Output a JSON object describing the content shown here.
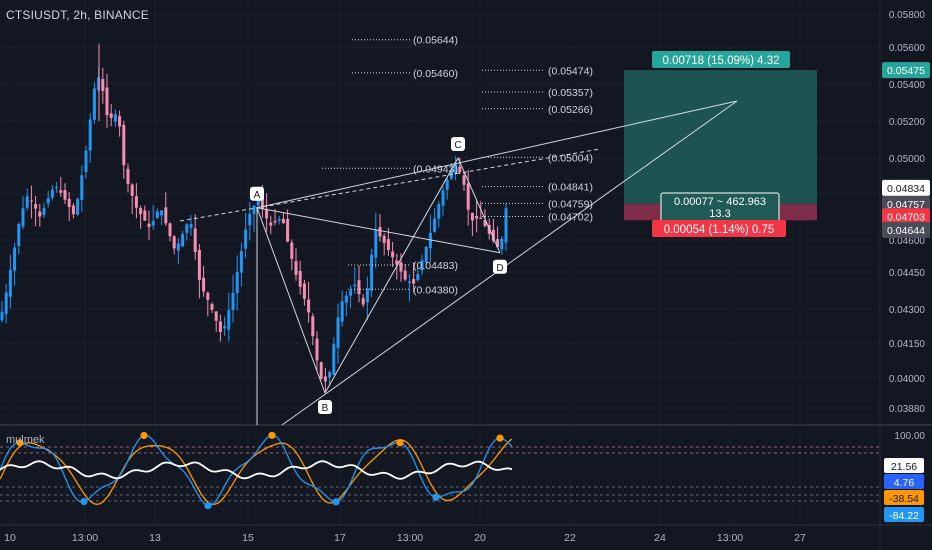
{
  "header": {
    "symbol": "CTSIUSDT, 2h, BINANCE"
  },
  "indicator": {
    "name": "mulmek"
  },
  "chart_data": {
    "type": "candlestick",
    "price_axis": {
      "ticks": [
        "0.05800",
        "0.05600",
        "0.05400",
        "0.05200",
        "0.05000",
        "0.04800",
        "0.04600",
        "0.04450",
        "0.04300",
        "0.04150",
        "0.04000",
        "0.03880"
      ],
      "range": [
        0.0378,
        0.0585
      ]
    },
    "price_labels": [
      {
        "text": "0.05475",
        "value": 0.05475,
        "color": "#26a69a"
      },
      {
        "text": "0.04834",
        "value": 0.04834,
        "color": "#ffffff",
        "fg": "#131722"
      },
      {
        "text": "0.04757",
        "value": 0.04757,
        "color": "#4a4d57"
      },
      {
        "text": "0.04703",
        "value": 0.04703,
        "color": "#f23645"
      },
      {
        "text": "0.04644",
        "value": 0.04644,
        "color": "#4a4d57"
      }
    ],
    "time_axis": [
      "10",
      "13:00",
      "13",
      "15",
      "17",
      "13:00",
      "20",
      "22",
      "24",
      "13:00",
      "27"
    ],
    "fib_levels": [
      {
        "text": "(0.05644)",
        "value": 0.05644
      },
      {
        "text": "(0.05460)",
        "value": 0.0546
      },
      {
        "text": "(0.05474)",
        "value": 0.05474
      },
      {
        "text": "(0.05357)",
        "value": 0.05357
      },
      {
        "text": "(0.05266)",
        "value": 0.05266
      },
      {
        "text": "(0.05004)",
        "value": 0.05004
      },
      {
        "text": "(0.04943)",
        "value": 0.04943
      },
      {
        "text": "(0.04841)",
        "value": 0.04841
      },
      {
        "text": "(0.04759)",
        "value": 0.04759
      },
      {
        "text": "(0.04702)",
        "value": 0.04702
      },
      {
        "text": "(0.04483)",
        "value": 0.04483
      },
      {
        "text": "(0.04380)",
        "value": 0.0438
      }
    ],
    "pattern_points": [
      {
        "label": "A",
        "value": 0.0474
      },
      {
        "label": "B",
        "value": 0.0394
      },
      {
        "label": "C",
        "value": 0.05
      },
      {
        "label": "D",
        "value": 0.0454
      }
    ],
    "position": {
      "target": "0.00718 (15.09%) 4.32",
      "entry_line1": "0.00077 ~ 462.963",
      "entry_line2": "13.3",
      "stop": "0.00054 (1.14%) 0.75",
      "target_price": 0.05475,
      "entry_price": 0.04757,
      "stop_price": 0.04703
    },
    "oscillator": {
      "ticks": [
        "100.00"
      ],
      "values": [
        {
          "text": "21.56",
          "color": "#ffffff",
          "fg": "#131722"
        },
        {
          "text": "4.76",
          "color": "#2962ff"
        },
        {
          "text": "-38.54",
          "color": "#ff9800",
          "fg": "#131722"
        },
        {
          "text": "-84.22",
          "color": "#2196f3"
        }
      ]
    },
    "colors": {
      "up": "#2196f3",
      "down": "#f48fb1",
      "bg": "#131722",
      "grid": "#1e222d",
      "teal": "#26a69a",
      "red": "#f23645",
      "orange": "#ff9800",
      "blue": "#2196f3",
      "white": "#ffffff"
    }
  }
}
